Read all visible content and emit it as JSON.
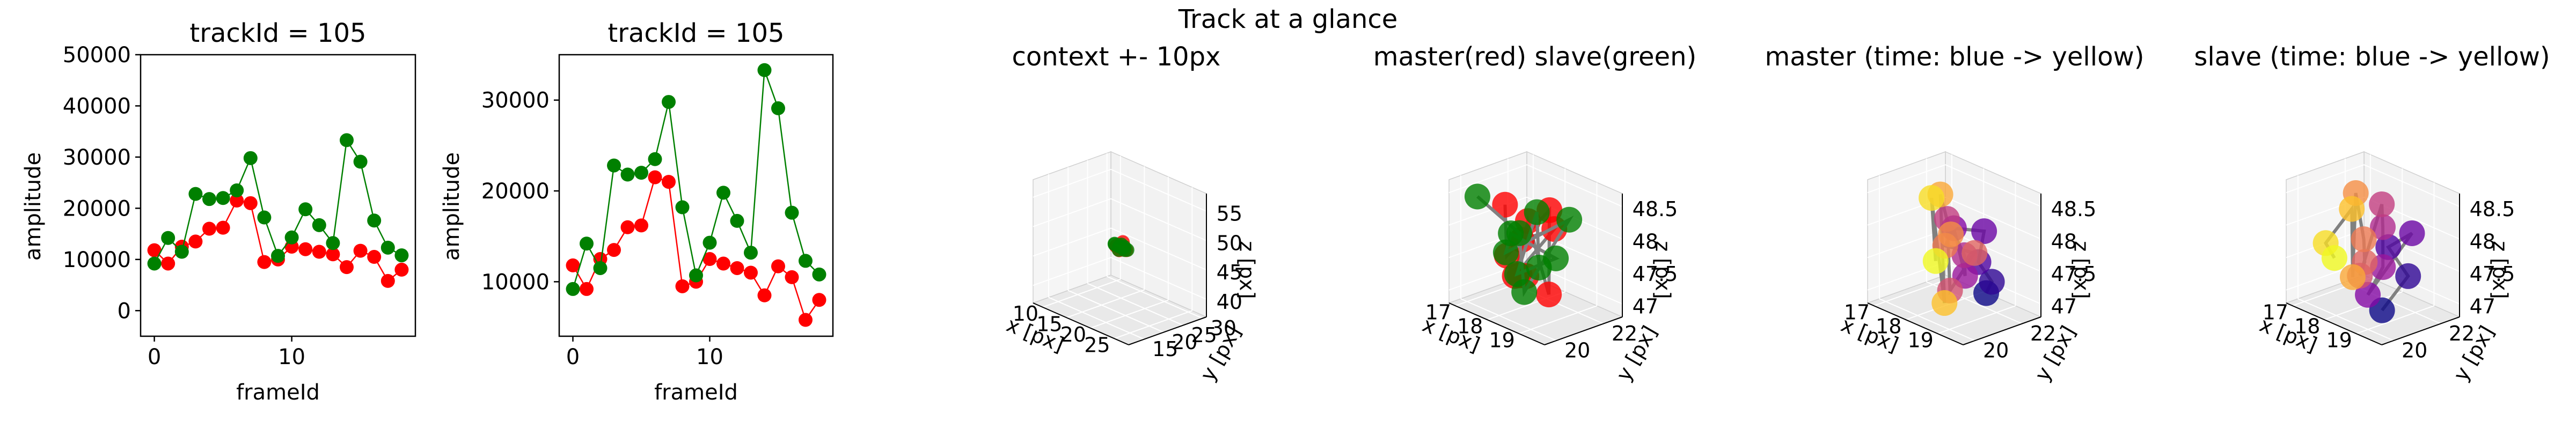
{
  "figure": {
    "suptitle": "Track at a glance"
  },
  "chart_data": [
    {
      "type": "line",
      "title": "trackId = 105",
      "xlabel": "frameId",
      "ylabel": "amplitude",
      "xlim": [
        -1,
        19
      ],
      "ylim": [
        -5000,
        50000
      ],
      "xticks": [
        0,
        10
      ],
      "yticks": [
        0,
        10000,
        20000,
        30000,
        40000,
        50000
      ],
      "series": [
        {
          "color": "#ff0000",
          "x": [
            0,
            1,
            2,
            3,
            4,
            5,
            6,
            7,
            8,
            9,
            10,
            11,
            12,
            13,
            14,
            15,
            16,
            17,
            18
          ],
          "values": [
            11800,
            9200,
            12500,
            13500,
            16000,
            16200,
            21500,
            21000,
            9500,
            10000,
            12500,
            12000,
            11500,
            11000,
            8500,
            11700,
            10500,
            5800,
            8000
          ]
        },
        {
          "color": "#008000",
          "x": [
            0,
            1,
            2,
            3,
            4,
            5,
            6,
            7,
            8,
            9,
            10,
            11,
            12,
            13,
            14,
            15,
            16,
            17,
            18
          ],
          "values": [
            9200,
            14200,
            11500,
            22800,
            21800,
            22000,
            23500,
            29800,
            18200,
            10700,
            14300,
            19800,
            16700,
            13200,
            33300,
            29100,
            17600,
            12300,
            10800
          ]
        }
      ]
    },
    {
      "type": "line",
      "title": "trackId = 105",
      "xlabel": "frameId",
      "ylabel": "amplitude",
      "xlim": [
        -1,
        19
      ],
      "ylim": [
        4000,
        35000
      ],
      "xticks": [
        0,
        10
      ],
      "yticks": [
        10000,
        20000,
        30000
      ],
      "series": [
        {
          "color": "#ff0000",
          "x": [
            0,
            1,
            2,
            3,
            4,
            5,
            6,
            7,
            8,
            9,
            10,
            11,
            12,
            13,
            14,
            15,
            16,
            17,
            18
          ],
          "values": [
            11800,
            9200,
            12500,
            13500,
            16000,
            16200,
            21500,
            21000,
            9500,
            10000,
            12500,
            12000,
            11500,
            11000,
            8500,
            11700,
            10500,
            5800,
            8000
          ]
        },
        {
          "color": "#008000",
          "x": [
            0,
            1,
            2,
            3,
            4,
            5,
            6,
            7,
            8,
            9,
            10,
            11,
            12,
            13,
            14,
            15,
            16,
            17,
            18
          ],
          "values": [
            9200,
            14200,
            11500,
            22800,
            21800,
            22000,
            23500,
            29800,
            18200,
            10700,
            14300,
            19800,
            16700,
            13200,
            33300,
            29100,
            17600,
            12300,
            10800
          ]
        }
      ]
    },
    {
      "type": "scatter",
      "projection": "3d",
      "title": "context +- 10px",
      "xlabel": "x [px]",
      "ylabel": "y [px]",
      "zlabel": "z [px]",
      "xlim": [
        8,
        28
      ],
      "ylim": [
        11,
        31
      ],
      "zlim": [
        37,
        58
      ],
      "xticks": [
        10,
        15,
        20,
        25
      ],
      "yticks": [
        15,
        20,
        25,
        30
      ],
      "zticks": [
        40,
        45,
        50,
        55
      ],
      "series": [
        {
          "color": "#ff0000",
          "x": [
            17.2,
            18.5,
            17.6,
            18.9,
            17.9,
            18.3,
            17.5,
            18.8,
            17.8,
            18.1
          ],
          "y": [
            21.0,
            20.3,
            21.6,
            20.8,
            21.9,
            20.5,
            21.2,
            21.7,
            20.6,
            21.4
          ],
          "z": [
            47.6,
            48.1,
            47.2,
            47.8,
            48.3,
            47.4,
            47.9,
            47.3,
            48.0,
            47.5
          ]
        },
        {
          "color": "#008000",
          "x": [
            17.1,
            18.6,
            17.4,
            18.2,
            17.7,
            18.9,
            17.3,
            18.4,
            17.9,
            18.7
          ],
          "y": [
            20.8,
            21.5,
            20.4,
            21.9,
            21.1,
            20.6,
            21.7,
            20.9,
            21.3,
            22.1
          ],
          "z": [
            47.9,
            47.3,
            48.2,
            47.6,
            47.1,
            48.0,
            47.4,
            48.3,
            47.7,
            47.2
          ]
        }
      ]
    },
    {
      "type": "scatter",
      "projection": "3d",
      "title": "master(red) slave(green)",
      "xlabel": "x [px]",
      "ylabel": "y [px]",
      "zlabel": "z [px]",
      "xlim": [
        16.8,
        19.8
      ],
      "ylim": [
        19.5,
        22.8
      ],
      "zlim": [
        46.8,
        48.7
      ],
      "xticks": [
        17,
        18,
        19
      ],
      "yticks": [
        20,
        22
      ],
      "zticks": [
        47.0,
        47.5,
        48.0,
        48.5
      ],
      "series": [
        {
          "color": "#ff0000",
          "x": [
            17.3,
            17.8,
            18.4,
            18.9,
            17.5,
            18.2,
            18.7,
            17.9,
            18.5,
            17.6
          ],
          "y": [
            21.2,
            20.6,
            21.6,
            20.9,
            21.9,
            20.4,
            21.4,
            21.1,
            20.2,
            21.7
          ],
          "z": [
            48.2,
            47.6,
            48.3,
            47.2,
            47.9,
            47.4,
            48.1,
            47.8,
            47.5,
            47.1
          ]
        },
        {
          "color": "#008000",
          "x": [
            17.1,
            17.6,
            18.2,
            18.8,
            17.4,
            18.0,
            18.6,
            17.9,
            18.3,
            17.7
          ],
          "y": [
            20.3,
            21.4,
            20.8,
            21.9,
            21.1,
            20.5,
            21.6,
            20.9,
            21.2,
            22.1
          ],
          "z": [
            48.4,
            47.8,
            47.1,
            48.2,
            47.5,
            48.0,
            47.6,
            47.3,
            48.3,
            47.2
          ]
        }
      ]
    },
    {
      "type": "scatter",
      "projection": "3d",
      "colormap": "plasma",
      "title": "master (time: blue -> yellow)",
      "xlabel": "x [px]",
      "ylabel": "y [px]",
      "zlabel": "z [px]",
      "xlim": [
        16.8,
        19.8
      ],
      "ylim": [
        19.5,
        22.8
      ],
      "zlim": [
        46.8,
        48.7
      ],
      "xticks": [
        17,
        18,
        19
      ],
      "yticks": [
        20,
        22
      ],
      "zticks": [
        47.0,
        47.5,
        48.0,
        48.5
      ],
      "series": [
        {
          "x": [
            18.6,
            19.0,
            18.8,
            19.2,
            18.4,
            18.9,
            19.1,
            18.7,
            18.5,
            18.9,
            18.2,
            18.6,
            17.9,
            18.4,
            17.4,
            17.9
          ],
          "y": [
            22.1,
            21.8,
            21.5,
            21.2,
            21.0,
            20.8,
            20.5,
            20.3,
            20.7,
            21.2,
            20.9,
            20.6,
            21.1,
            20.6,
            21.4,
            20.9
          ],
          "z": [
            47.0,
            47.3,
            47.6,
            48.2,
            48.1,
            47.5,
            47.9,
            48.4,
            47.2,
            47.8,
            47.8,
            48.1,
            48.5,
            47.0,
            48.3,
            47.5
          ]
        }
      ]
    },
    {
      "type": "scatter",
      "projection": "3d",
      "colormap": "plasma",
      "title": "slave (time: blue -> yellow)",
      "xlabel": "x [px]",
      "ylabel": "y [px]",
      "zlabel": "z [px]",
      "xlim": [
        16.8,
        19.8
      ],
      "ylim": [
        19.5,
        22.8
      ],
      "zlim": [
        46.8,
        48.7
      ],
      "xticks": [
        17,
        18,
        19
      ],
      "yticks": [
        20,
        22
      ],
      "zticks": [
        47.0,
        47.5,
        48.0,
        48.5
      ],
      "series": [
        {
          "x": [
            18.7,
            19.0,
            18.6,
            18.9,
            18.4,
            18.8,
            18.5,
            18.1,
            18.3,
            18.6,
            18.2,
            17.8,
            18.0,
            17.6,
            17.3,
            17.5
          ],
          "y": [
            21.0,
            21.7,
            21.4,
            22.0,
            20.8,
            20.9,
            21.3,
            21.8,
            20.6,
            20.4,
            20.9,
            21.1,
            20.7,
            21.2,
            20.5,
            20.6
          ],
          "z": [
            46.9,
            47.4,
            47.8,
            48.0,
            47.1,
            47.6,
            48.1,
            48.3,
            47.4,
            47.7,
            47.9,
            48.5,
            47.3,
            48.2,
            47.7,
            47.5
          ]
        }
      ]
    }
  ]
}
